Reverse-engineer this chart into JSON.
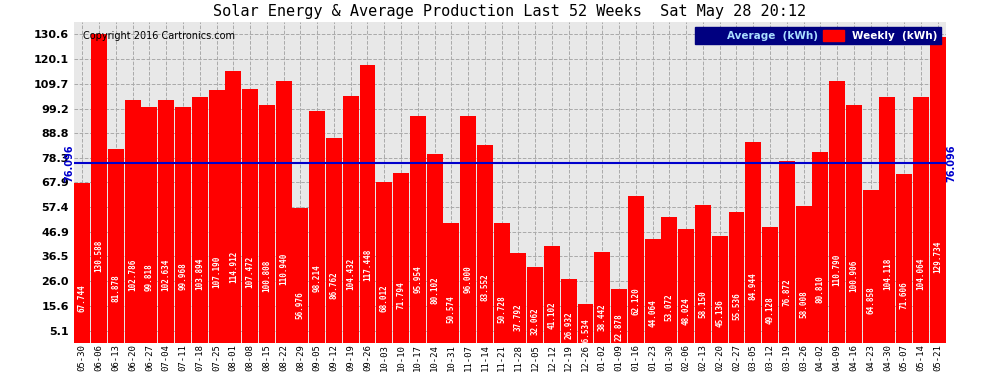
{
  "title": "Solar Energy & Average Production Last 52 Weeks  Sat May 28 20:12",
  "copyright": "Copyright 2016 Cartronics.com",
  "average_line": 76.096,
  "average_label": "76.096",
  "bar_color": "#ff0000",
  "average_color": "#0000cc",
  "background_color": "#ffffff",
  "plot_bg_color": "#e8e8e8",
  "yticks": [
    5.1,
    15.6,
    26.0,
    36.5,
    46.9,
    57.4,
    67.9,
    78.3,
    88.8,
    99.2,
    109.7,
    120.1,
    130.6
  ],
  "ylim": [
    0,
    136
  ],
  "legend_avg_color": "#000080",
  "legend_weekly_color": "#ff0000",
  "legend_avg_text": "Average  (kWh)",
  "legend_weekly_text": "Weekly  (kWh)",
  "weeks": [
    "05-30",
    "06-06",
    "06-13",
    "06-20",
    "06-27",
    "07-04",
    "07-11",
    "07-18",
    "07-25",
    "08-01",
    "08-08",
    "08-15",
    "08-22",
    "08-29",
    "09-05",
    "09-12",
    "09-19",
    "09-26",
    "10-03",
    "10-10",
    "10-17",
    "10-24",
    "10-31",
    "11-07",
    "11-14",
    "11-21",
    "11-28",
    "12-05",
    "12-12",
    "12-19",
    "12-26",
    "01-02",
    "01-09",
    "01-16",
    "01-23",
    "01-30",
    "02-06",
    "02-13",
    "02-20",
    "02-27",
    "03-05",
    "03-12",
    "03-19",
    "03-26",
    "04-02",
    "04-09",
    "04-16",
    "04-23",
    "04-30",
    "05-07",
    "05-14",
    "05-21"
  ],
  "values": [
    67.744,
    130.588,
    81.878,
    102.786,
    99.818,
    102.634,
    99.968,
    103.894,
    107.19,
    114.912,
    107.472,
    100.808,
    110.94,
    56.976,
    98.214,
    86.762,
    104.432,
    117.448,
    68.012,
    71.794,
    95.954,
    80.102,
    50.574,
    96.0,
    83.552,
    50.728,
    37.792,
    32.062,
    41.102,
    26.932,
    16.534,
    38.442,
    22.878,
    62.12,
    44.064,
    53.072,
    48.024,
    58.15,
    45.136,
    55.536,
    84.944,
    49.128,
    76.872,
    58.008,
    80.81,
    110.79,
    100.906,
    64.858,
    104.118,
    71.606,
    104.064,
    129.734
  ]
}
